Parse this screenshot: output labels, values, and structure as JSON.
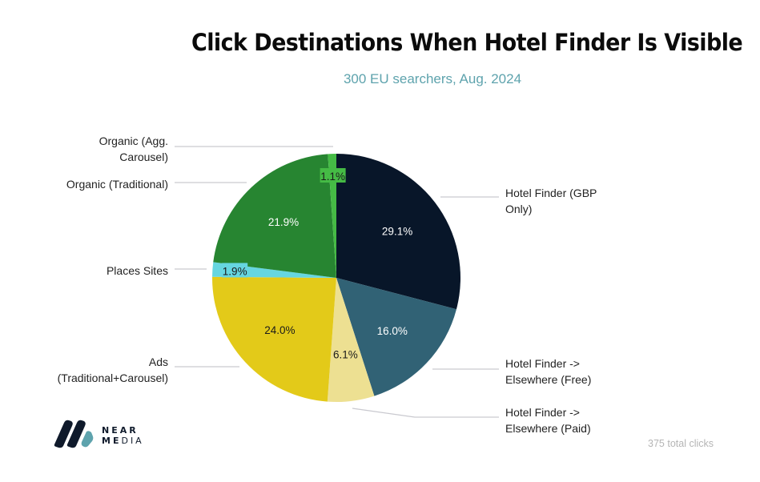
{
  "header": {
    "title": "Click Destinations When Hotel Finder Is Visible",
    "subtitle": "300 EU searchers, Aug. 2024"
  },
  "footer": {
    "note": "375 total clicks",
    "brand_line1": "NEAR",
    "brand_line2_bold": "ME",
    "brand_line2_thin": "DIA"
  },
  "colors": {
    "hotel_finder_gbp": "#081629",
    "elsewhere_free": "#316275",
    "elsewhere_paid": "#ede092",
    "ads": "#e3ca19",
    "places_sites": "#66d6e0",
    "organic_traditional": "#278531",
    "organic_agg": "#45bb45",
    "subtitle": "#5ea3ad",
    "logo_dark": "#0f1a2b",
    "logo_accent": "#5ea3ad"
  },
  "chart_data": {
    "type": "pie",
    "title": "Click Destinations When Hotel Finder Is Visible",
    "subtitle": "300 EU searchers, Aug. 2024",
    "start_angle": "12 o'clock",
    "direction": "clockwise",
    "categories": [
      "Hotel Finder (GBP Only)",
      "Hotel Finder -> Elsewhere (Free)",
      "Hotel Finder -> Elsewhere (Paid)",
      "Ads (Traditional+Carousel)",
      "Places Sites",
      "Organic (Traditional)",
      "Organic (Agg. Carousel)"
    ],
    "values": [
      29.1,
      16.0,
      6.1,
      24.0,
      1.9,
      21.9,
      1.1
    ],
    "labels": [
      "29.1%",
      "16.0%",
      "6.1%",
      "24.0%",
      "1.9%",
      "21.9%",
      "1.1%"
    ],
    "colors": [
      "#081629",
      "#316275",
      "#ede092",
      "#e3ca19",
      "#66d6e0",
      "#278531",
      "#45bb45"
    ],
    "legend": "callout labels with leader lines",
    "annotation": "375 total clicks"
  },
  "labels": {
    "gbp_only_1": "Hotel Finder (GBP",
    "gbp_only_2": "Only)",
    "free_1": "Hotel Finder ->",
    "free_2": "Elsewhere (Free)",
    "paid_1": "Hotel Finder ->",
    "paid_2": "Elsewhere (Paid)",
    "ads_1": "Ads",
    "ads_2": "(Traditional+Carousel)",
    "places": "Places Sites",
    "organic_trad": "Organic (Traditional)",
    "organic_agg_1": "Organic (Agg.",
    "organic_agg_2": "Carousel)"
  }
}
